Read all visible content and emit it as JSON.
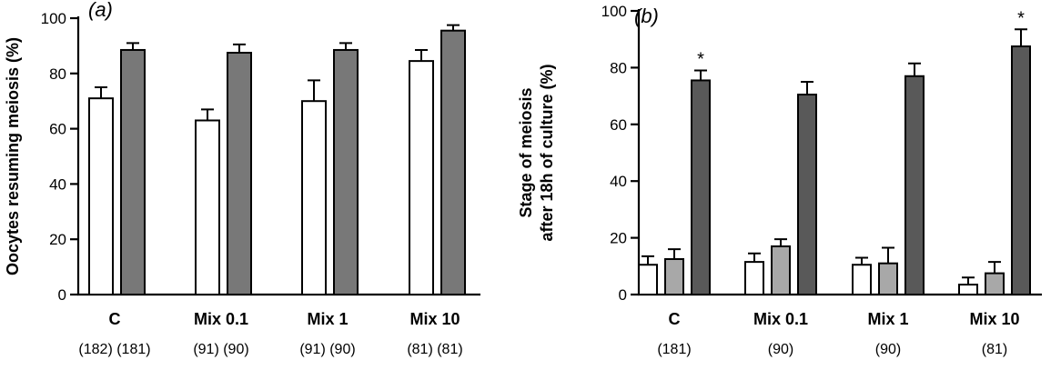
{
  "chart_data": [
    {
      "type": "bar",
      "panel_label": "(a)",
      "ylabel": "Oocytes resuming meiosis (%)",
      "xlabel": "",
      "ylim": [
        0,
        100
      ],
      "yticks": [
        0,
        20,
        40,
        60,
        80,
        100
      ],
      "categories": [
        "C",
        "Mix 0.1",
        "Mix 1",
        "Mix 10"
      ],
      "sample_sizes": [
        "(182) (181)",
        "(91) (90)",
        "(91) (90)",
        "(81) (81)"
      ],
      "series": [
        {
          "values": [
            71,
            63,
            70,
            84.5
          ],
          "errors": [
            4,
            4,
            7.5,
            4
          ],
          "color": "#ffffff"
        },
        {
          "values": [
            88.5,
            87.5,
            88.5,
            95.5
          ],
          "errors": [
            2.5,
            3,
            2.5,
            2
          ],
          "color": "#787878"
        }
      ],
      "annotations": []
    },
    {
      "type": "bar",
      "panel_label": "(b)",
      "ylabel": "Stage of meiosis after 18h of culture (%)",
      "xlabel": "",
      "ylim": [
        0,
        100
      ],
      "yticks": [
        0,
        20,
        40,
        60,
        80,
        100
      ],
      "categories": [
        "C",
        "Mix 0.1",
        "Mix 1",
        "Mix 10"
      ],
      "sample_sizes": [
        "(181)",
        "(90)",
        "(90)",
        "(81)"
      ],
      "series": [
        {
          "values": [
            10.5,
            11.5,
            10.5,
            3.5
          ],
          "errors": [
            3,
            3,
            2.5,
            2.5
          ],
          "color": "#ffffff"
        },
        {
          "values": [
            12.5,
            17,
            11,
            7.5
          ],
          "errors": [
            3.5,
            2.5,
            5.5,
            4
          ],
          "color": "#a8a8a8"
        },
        {
          "values": [
            75.5,
            70.5,
            77,
            87.5
          ],
          "errors": [
            3.5,
            4.5,
            4.5,
            6
          ],
          "color": "#595959"
        }
      ],
      "annotations": [
        {
          "category": "C",
          "series": 2,
          "text": "*"
        },
        {
          "category": "Mix 10",
          "series": 2,
          "text": "*"
        }
      ]
    }
  ]
}
